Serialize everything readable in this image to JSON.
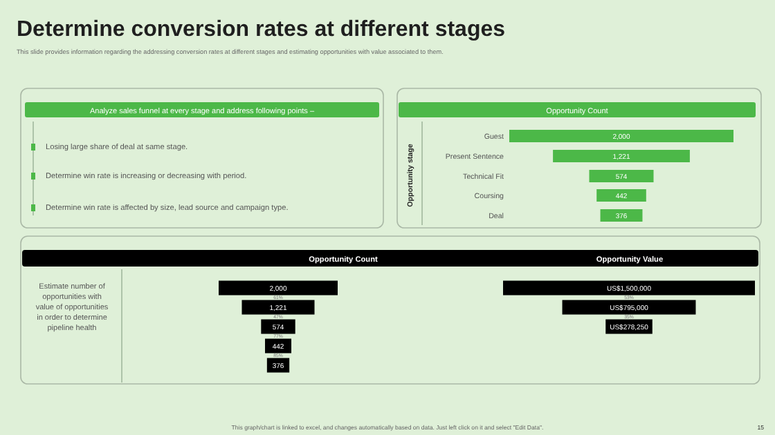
{
  "chart_data": [
    {
      "type": "other",
      "title": "Determine conversion rates at different stages",
      "subtitle": "This slide provides information regarding the addressing conversion rates at different stages and estimating opportunities with value associated to them.",
      "legend_title": "Analyze sales funnel at every stage and address following points –",
      "annotations": [
        "Losing large share of deal at same stage.",
        "Determine win rate is increasing or decreasing with period.",
        "Determine win rate is affected by size, lead source and campaign type.",
        "This graph/chart is linked to excel, and changes automatically based on data. Just left click on it and select \"Edit Data\".",
        "15"
      ]
    },
    {
      "type": "other",
      "title": "Opportunity Count",
      "ylabel": "Opportunity stage",
      "categories": [
        "Guest",
        "Present Sentence",
        "Technical Fit",
        "Coursing",
        "Deal"
      ],
      "values": [
        2000,
        1221,
        574,
        442,
        376
      ],
      "color": "#4cb848",
      "value_labels": [
        "2,000",
        "1,221",
        "574",
        "442",
        "376"
      ]
    },
    {
      "type": "other",
      "title": "Opportunity Count",
      "values": [
        2000,
        1221,
        574,
        442,
        376
      ],
      "color": "#000000",
      "value_labels": [
        "2,000",
        "1,221",
        "574",
        "442",
        "376"
      ],
      "annotations": [
        "Estimate number of opportunities with value of opportunities in order to determine pipeline health",
        "61%",
        "47%",
        "77%",
        "85%"
      ]
    },
    {
      "type": "other",
      "title": "Opportunity Value",
      "values": [
        1500000,
        795000,
        278250,
        null,
        null
      ],
      "color": "#000000",
      "value_labels": [
        "US$1,500,000",
        "US$795,000",
        "US$278,250",
        null,
        null
      ],
      "annotations": [
        "53%",
        "35%"
      ]
    }
  ]
}
